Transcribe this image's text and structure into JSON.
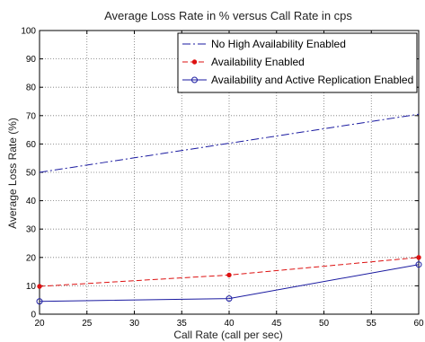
{
  "chart_data": {
    "type": "line",
    "title": "Average Loss Rate in % versus Call Rate in cps",
    "xlabel": "Call Rate (call per sec)",
    "ylabel": "Average Loss Rate (%)",
    "xlim": [
      20,
      60
    ],
    "ylim": [
      0,
      100
    ],
    "xticks": [
      20,
      25,
      30,
      35,
      40,
      45,
      50,
      55,
      60
    ],
    "yticks": [
      0,
      10,
      20,
      30,
      40,
      50,
      60,
      70,
      80,
      90,
      100
    ],
    "grid": true,
    "legend_position": "top-right",
    "series": [
      {
        "name": "No High Availability Enabled",
        "x": [
          20,
          60
        ],
        "y": [
          50,
          70.5
        ],
        "color": "#1a1aa0",
        "line_style": "dash-dot",
        "marker": "none"
      },
      {
        "name": "Availability Enabled",
        "x": [
          20,
          40,
          60
        ],
        "y": [
          9.8,
          13.8,
          20
        ],
        "color": "#dd1111",
        "line_style": "dashed",
        "marker": "dot"
      },
      {
        "name": "Availability and Active Replication Enabled",
        "x": [
          20,
          40,
          60
        ],
        "y": [
          4.5,
          5.5,
          17.5
        ],
        "color": "#1a1aa0",
        "line_style": "solid",
        "marker": "circle"
      }
    ]
  }
}
